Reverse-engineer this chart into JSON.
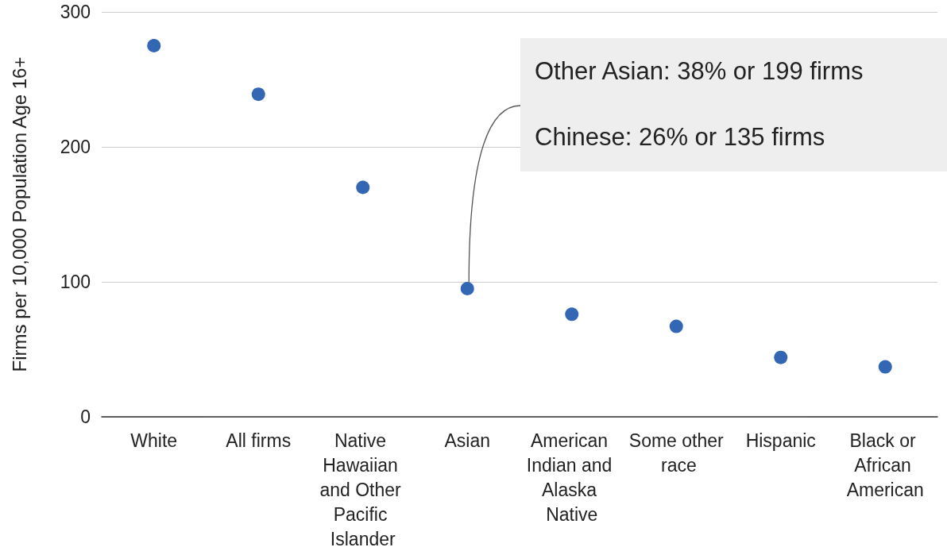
{
  "chart_data": {
    "type": "scatter",
    "ylabel": "Firms per 10,000 Population Age 16+",
    "categories": [
      "White",
      "All firms",
      "Native Hawaiian and Other Pacific Islander",
      "Asian",
      "American Indian and Alaska Native",
      "Some other race",
      "Hispanic",
      "Black or African American"
    ],
    "values": [
      275,
      239,
      170,
      95,
      76,
      67,
      44,
      37
    ],
    "color": "#3366b3",
    "marker": "circle",
    "ylim": [
      0,
      300
    ],
    "yticks": [
      0,
      100,
      200,
      300
    ],
    "grid": "y",
    "annotations": [
      {
        "text": "Other Asian: 38% or 199 firms",
        "x": "Asian",
        "y": 95
      },
      "Chinese: 26% or 135 firms"
    ]
  }
}
